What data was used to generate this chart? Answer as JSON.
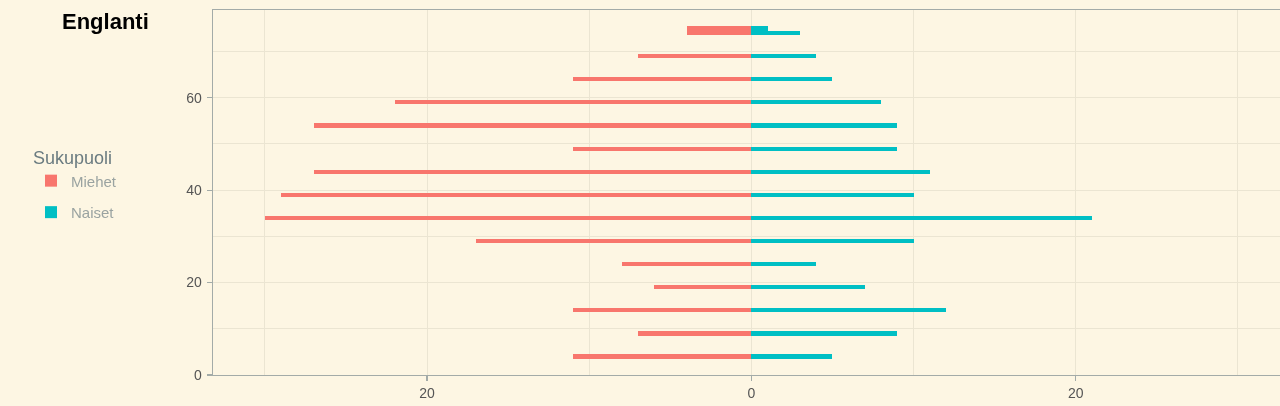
{
  "chart_data": {
    "type": "bar",
    "orientation": "horizontal",
    "stacked": true,
    "title": "Englanti",
    "legend_title": "Sukupuoli",
    "legend": "left",
    "grid": true,
    "x": [
      4,
      9,
      14,
      19,
      24,
      29,
      34,
      39,
      44,
      49,
      54,
      59,
      64,
      69,
      74,
      75
    ],
    "series": [
      {
        "name": "Miehet",
        "color": "#f8766d",
        "values": [
          -11,
          -7,
          -11,
          -6,
          -8,
          -17,
          -30,
          -29,
          -27,
          -11,
          -27,
          -22,
          -11,
          -7,
          -4,
          -4
        ]
      },
      {
        "name": "Naiset",
        "color": "#00bfc4",
        "values": [
          5,
          9,
          12,
          7,
          4,
          10,
          21,
          10,
          11,
          9,
          9,
          8,
          5,
          4,
          3,
          1
        ]
      }
    ],
    "xlim": [
      -33.2,
      32.6
    ],
    "xticks": [
      {
        "value": -30,
        "label": null
      },
      {
        "value": -20,
        "label": "20"
      },
      {
        "value": -10,
        "label": null
      },
      0,
      {
        "value": 10,
        "label": null
      },
      20,
      {
        "value": 30,
        "label": null
      }
    ],
    "ylim": [
      0,
      79
    ],
    "yticks": [
      0,
      {
        "value": 10,
        "label": null
      },
      20,
      {
        "value": 30,
        "label": null
      },
      40,
      {
        "value": 50,
        "label": null
      },
      60,
      {
        "value": 70,
        "label": null
      }
    ]
  }
}
